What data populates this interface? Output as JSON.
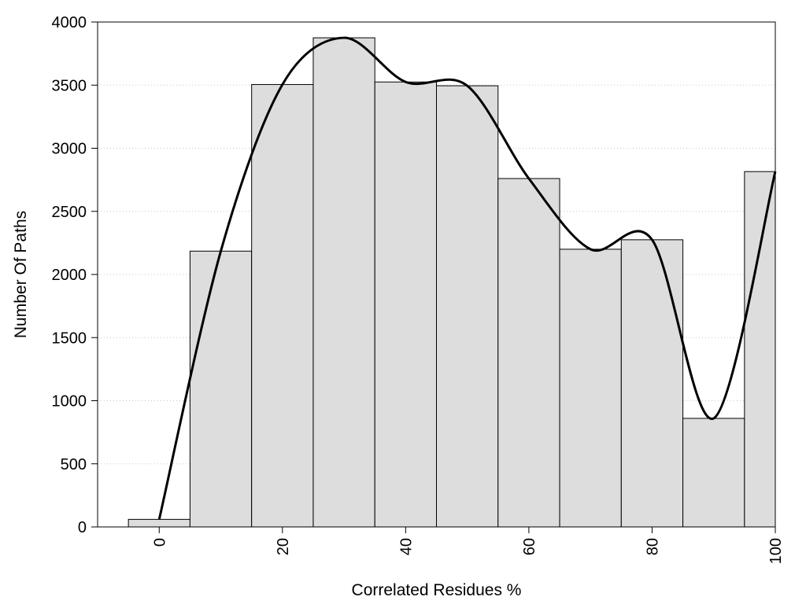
{
  "chart_data": {
    "type": "bar",
    "title": "",
    "xlabel": "Correlated Residues %",
    "ylabel": "Number Of Paths",
    "bin_centers": [
      0,
      10,
      20,
      30,
      40,
      50,
      60,
      70,
      80,
      90,
      100
    ],
    "values": [
      60,
      2185,
      3505,
      3875,
      3525,
      3495,
      2760,
      2200,
      2275,
      860,
      2815
    ],
    "bin_width": 10,
    "xlim": [
      -10,
      100
    ],
    "ylim": [
      0,
      4000
    ],
    "x_ticks": [
      0,
      20,
      40,
      60,
      80,
      100
    ],
    "y_ticks": [
      0,
      500,
      1000,
      1500,
      2000,
      2500,
      3000,
      3500,
      4000
    ],
    "x_tick_labels": [
      "0",
      "20",
      "40",
      "60",
      "80",
      "100"
    ],
    "y_tick_labels": [
      "0",
      "500",
      "1000",
      "1500",
      "2000",
      "2500",
      "3000",
      "3500",
      "4000"
    ],
    "grid": "horizontal dotted",
    "bar_color": "#dddddd",
    "bar_edge_color": "#000000",
    "smooth_curve": {
      "x": [
        0,
        10,
        20,
        30,
        40,
        50,
        60,
        70,
        80,
        90,
        100
      ],
      "y": [
        60,
        2185,
        3505,
        3875,
        3525,
        3495,
        2760,
        2200,
        2275,
        860,
        2815
      ],
      "color": "#000000"
    }
  }
}
